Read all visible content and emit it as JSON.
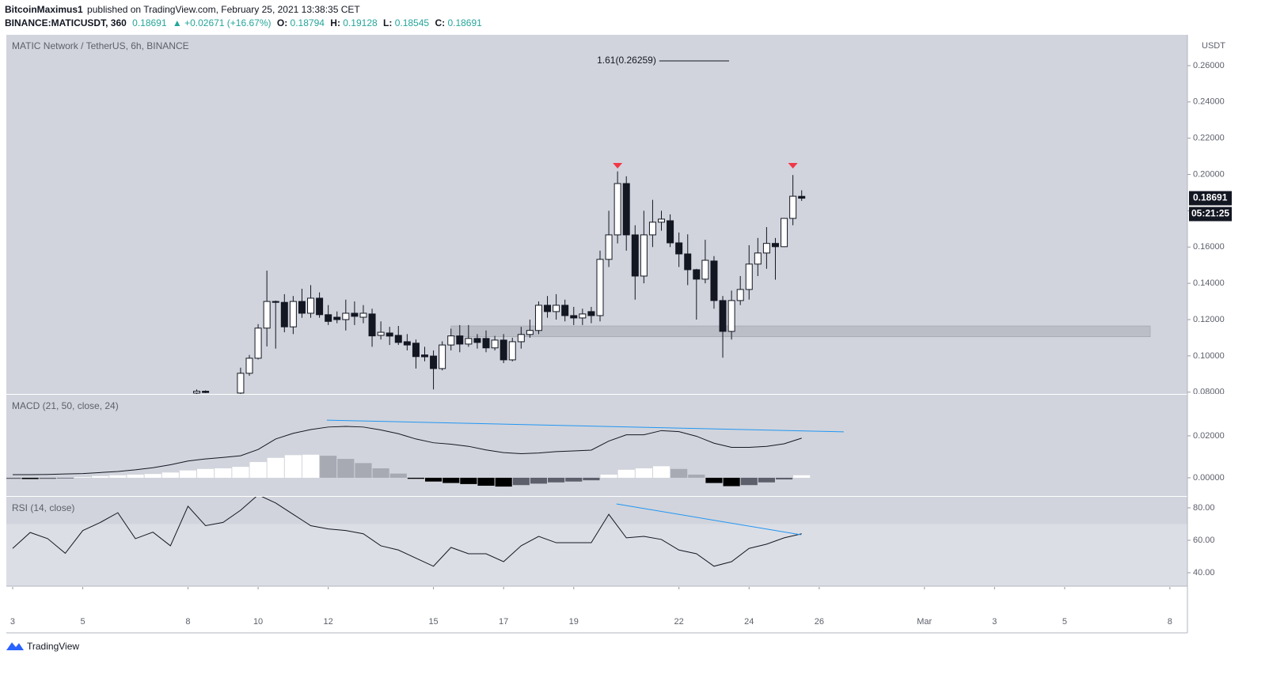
{
  "header": {
    "author": "BitcoinMaximus1",
    "published": "published on TradingView.com, February 25, 2021 13:38:35 CET",
    "symbol": "BINANCE:MATICUSDT, 360",
    "change": "▲ +0.02671 (+16.67%)",
    "open_label": "O:",
    "high_label": "H:",
    "low_label": "L:",
    "close_label": "C:"
  },
  "footer": "TradingView",
  "chart_data": [
    {
      "type": "candlestick",
      "title": "MATIC Network / TetherUS, 6h, BINANCE",
      "currency": "USDT",
      "countdown": "05:21:25",
      "x": [
        8.25,
        8.5,
        9.5,
        9.75,
        10,
        10.25,
        10.5,
        10.75,
        11,
        11.25,
        11.5,
        11.75,
        12,
        12.25,
        12.5,
        12.75,
        13,
        13.25,
        13.5,
        13.75,
        14,
        14.25,
        14.5,
        14.75,
        15,
        15.25,
        15.5,
        15.75,
        16,
        16.25,
        16.5,
        16.75,
        17,
        17.25,
        17.5,
        17.75,
        18,
        18.25,
        18.5,
        18.75,
        19,
        19.25,
        19.5,
        19.75,
        20,
        20.25,
        20.5,
        20.75,
        21,
        21.25,
        21.5,
        21.75,
        22,
        22.25,
        22.5,
        22.75,
        23,
        23.25,
        23.5,
        23.75,
        24,
        24.25,
        24.5,
        24.75,
        25,
        25.25,
        25.5
      ],
      "open": [
        0.0795,
        0.0805,
        0.0795,
        0.0904,
        0.0987,
        0.1153,
        0.13,
        0.1295,
        0.116,
        0.13,
        0.1235,
        0.1318,
        0.1227,
        0.1213,
        0.12,
        0.1235,
        0.1213,
        0.1231,
        0.1113,
        0.1126,
        0.1113,
        0.1078,
        0.107,
        0.1005,
        0.0999,
        0.093,
        0.106,
        0.111,
        0.1065,
        0.1096,
        0.1096,
        0.1044,
        0.1087,
        0.0978,
        0.1078,
        0.1118,
        0.114,
        0.1279,
        0.1244,
        0.1279,
        0.1222,
        0.1209,
        0.1244,
        0.1222,
        0.1532,
        0.1667,
        0.195,
        0.1667,
        0.144,
        0.1667,
        0.1737,
        0.1745,
        0.1623,
        0.1562,
        0.1475,
        0.1423,
        0.1523,
        0.1305,
        0.1135,
        0.1305,
        0.1366,
        0.1506,
        0.1567,
        0.162,
        0.1602,
        0.1758,
        0.18794
      ],
      "high": [
        0.0815,
        0.081,
        0.0935,
        0.1005,
        0.1175,
        0.147,
        0.1305,
        0.134,
        0.133,
        0.137,
        0.139,
        0.135,
        0.128,
        0.1245,
        0.131,
        0.13,
        0.128,
        0.126,
        0.119,
        0.116,
        0.1165,
        0.112,
        0.109,
        0.105,
        0.103,
        0.108,
        0.115,
        0.117,
        0.117,
        0.112,
        0.114,
        0.111,
        0.112,
        0.11,
        0.116,
        0.12,
        0.13,
        0.133,
        0.134,
        0.131,
        0.127,
        0.126,
        0.127,
        0.158,
        0.18,
        0.2017,
        0.199,
        0.172,
        0.18,
        0.186,
        0.18,
        0.178,
        0.168,
        0.167,
        0.148,
        0.164,
        0.155,
        0.133,
        0.136,
        0.144,
        0.161,
        0.165,
        0.171,
        0.165,
        0.176,
        0.1997,
        0.19128
      ],
      "low": [
        0.079,
        0.0795,
        0.078,
        0.089,
        0.098,
        0.1052,
        0.104,
        0.113,
        0.112,
        0.121,
        0.121,
        0.121,
        0.117,
        0.118,
        0.114,
        0.117,
        0.118,
        0.105,
        0.109,
        0.106,
        0.106,
        0.103,
        0.093,
        0.097,
        0.0815,
        0.092,
        0.103,
        0.102,
        0.105,
        0.104,
        0.102,
        0.103,
        0.096,
        0.097,
        0.104,
        0.11,
        0.112,
        0.121,
        0.12,
        0.119,
        0.117,
        0.117,
        0.118,
        0.119,
        0.149,
        0.162,
        0.158,
        0.131,
        0.14,
        0.16,
        0.169,
        0.16,
        0.149,
        0.139,
        0.12,
        0.14,
        0.126,
        0.099,
        0.109,
        0.128,
        0.131,
        0.144,
        0.148,
        0.142,
        0.16,
        0.172,
        0.18545
      ],
      "close": [
        0.0805,
        0.0798,
        0.0904,
        0.0987,
        0.1153,
        0.13,
        0.1295,
        0.116,
        0.13,
        0.1235,
        0.1318,
        0.1227,
        0.119,
        0.12,
        0.1235,
        0.1218,
        0.1235,
        0.111,
        0.113,
        0.1109,
        0.1074,
        0.106,
        0.0996,
        0.0995,
        0.093,
        0.106,
        0.111,
        0.1065,
        0.1096,
        0.1074,
        0.1044,
        0.1087,
        0.0978,
        0.1078,
        0.1118,
        0.114,
        0.1279,
        0.1244,
        0.1279,
        0.1222,
        0.1209,
        0.1231,
        0.1222,
        0.1532,
        0.1667,
        0.195,
        0.1667,
        0.144,
        0.1667,
        0.1737,
        0.1754,
        0.1623,
        0.1562,
        0.1475,
        0.1423,
        0.1527,
        0.1305,
        0.1135,
        0.1305,
        0.1366,
        0.1506,
        0.1567,
        0.162,
        0.1602,
        0.1758,
        0.188,
        0.18691
      ],
      "up_color": "#ffffff",
      "down_color": "#131722",
      "xlim": [
        2.82,
        36.5
      ],
      "ylim": [
        0.079,
        0.277
      ],
      "yticks": [
        {
          "value": 0.08,
          "label": "0.08000"
        },
        {
          "value": 0.1,
          "label": "0.10000"
        },
        {
          "value": 0.12,
          "label": "0.12000"
        },
        {
          "value": 0.14,
          "label": "0.14000"
        },
        {
          "value": 0.16,
          "label": "0.16000"
        },
        {
          "value": 0.18,
          "label": "0.18000"
        },
        {
          "value": 0.2,
          "label": "0.20000"
        },
        {
          "value": 0.22,
          "label": "0.22000"
        },
        {
          "value": 0.24,
          "label": "0.24000"
        },
        {
          "value": 0.26,
          "label": "0.26000"
        }
      ],
      "zone": {
        "x": [
          15.5,
          35.44
        ],
        "y": [
          0.1105,
          0.1165
        ],
        "color": "#b2b5be"
      },
      "fib": {
        "label": "1.61(0.26259)",
        "value": 0.26259,
        "x": [
          21.44,
          23.43
        ]
      },
      "markers": {
        "x": [
          20.25,
          25.25
        ],
        "y": [
          0.2046,
          0.2046
        ],
        "color": "#f23645"
      }
    },
    {
      "type": "macd",
      "title": "MACD (21, 50, close, 24)",
      "x": [
        3,
        3.5,
        4,
        4.5,
        5,
        5.5,
        6,
        6.5,
        7,
        7.5,
        8,
        8.5,
        9,
        9.5,
        10,
        10.5,
        11,
        11.5,
        12,
        12.5,
        13,
        13.5,
        14,
        14.5,
        15,
        15.5,
        16,
        16.5,
        17,
        17.5,
        18,
        18.5,
        19,
        19.5,
        20,
        20.5,
        21,
        21.5,
        22,
        22.5,
        23,
        23.5,
        24,
        24.5,
        25,
        25.5
      ],
      "macd": [
        0.0015,
        0.0015,
        0.0016,
        0.0018,
        0.002,
        0.0025,
        0.003,
        0.0038,
        0.0048,
        0.0062,
        0.008,
        0.009,
        0.0097,
        0.0105,
        0.0135,
        0.0185,
        0.0212,
        0.023,
        0.0242,
        0.0245,
        0.0242,
        0.0228,
        0.021,
        0.0185,
        0.0167,
        0.016,
        0.015,
        0.0133,
        0.012,
        0.0115,
        0.0118,
        0.0125,
        0.0128,
        0.0132,
        0.0175,
        0.0205,
        0.0205,
        0.0225,
        0.022,
        0.0198,
        0.0165,
        0.0145,
        0.0145,
        0.015,
        0.0162,
        0.0189
      ],
      "histogram": [
        -0.0005,
        -0.0006,
        -0.0005,
        -0.0003,
        0.0003,
        0.0008,
        0.0012,
        0.0015,
        0.0018,
        0.0025,
        0.0035,
        0.0042,
        0.0045,
        0.0052,
        0.0075,
        0.0095,
        0.0108,
        0.011,
        0.0105,
        0.009,
        0.007,
        0.0045,
        0.002,
        -0.0005,
        -0.0018,
        -0.0025,
        -0.003,
        -0.0038,
        -0.0042,
        -0.0035,
        -0.0028,
        -0.0022,
        -0.0018,
        -0.0012,
        0.0015,
        0.0038,
        0.0045,
        0.0055,
        0.0042,
        0.0015,
        -0.0025,
        -0.004,
        -0.0035,
        -0.0022,
        -0.0008,
        0.0012
      ],
      "line_color": "#131722",
      "histogram_colors": [
        "#ffffff",
        "#a8aab3",
        "#000000",
        "#5d606b"
      ],
      "xlim": [
        2.82,
        36.5
      ],
      "ylim": [
        -0.0087,
        0.0396
      ],
      "yticks": [
        {
          "value": 0,
          "label": "0.00000"
        },
        {
          "value": 0.02,
          "label": "0.02000"
        }
      ],
      "trendline": {
        "x": [
          11.96,
          26.7
        ],
        "y": [
          0.0275,
          0.0219
        ],
        "color": "#2196f3"
      }
    },
    {
      "type": "line",
      "title": "RSI (14, close)",
      "x": [
        3,
        3.5,
        4,
        4.5,
        5,
        5.5,
        6,
        6.5,
        7,
        7.5,
        8,
        8.5,
        9,
        9.5,
        10,
        10.5,
        11,
        11.5,
        12,
        12.5,
        13,
        13.5,
        14,
        14.5,
        15,
        15.5,
        16,
        16.5,
        17,
        17.5,
        18,
        18.5,
        19,
        19.5,
        20,
        20.5,
        21,
        21.5,
        22,
        22.5,
        23,
        23.5,
        24,
        24.5,
        25,
        25.5
      ],
      "values": [
        55,
        64.8,
        61,
        52,
        66,
        71,
        77,
        61,
        65,
        56.6,
        81,
        69,
        71,
        78.5,
        88,
        83,
        76,
        69,
        67,
        66,
        64,
        56.6,
        54,
        49,
        44,
        55.6,
        51.7,
        51.7,
        46.8,
        56.6,
        62.4,
        58.5,
        58.5,
        58.5,
        76,
        61.5,
        62.4,
        60.5,
        54,
        51.7,
        44,
        46.8,
        55,
        57.6,
        61.5,
        64
      ],
      "color": "#131722",
      "band": [
        30,
        70
      ],
      "band_color": "#dcdee5",
      "xlim": [
        2.82,
        36.5
      ],
      "ylim": [
        31.7,
        86.8
      ],
      "yticks": [
        {
          "value": 40,
          "label": "40.00"
        },
        {
          "value": 60,
          "label": "60.00"
        },
        {
          "value": 80,
          "label": "80.00"
        }
      ],
      "trendline": {
        "x": [
          20.22,
          25.48
        ],
        "y": [
          82.4,
          63.4
        ],
        "color": "#2196f3"
      },
      "xticks": [
        3,
        5,
        8,
        10,
        12,
        15,
        17,
        19,
        22,
        24,
        26,
        {
          "value": 29,
          "label": "Mar"
        },
        {
          "value": 31,
          "label": "3"
        },
        {
          "value": 33,
          "label": "5"
        },
        {
          "value": 36,
          "label": "8"
        }
      ]
    }
  ]
}
